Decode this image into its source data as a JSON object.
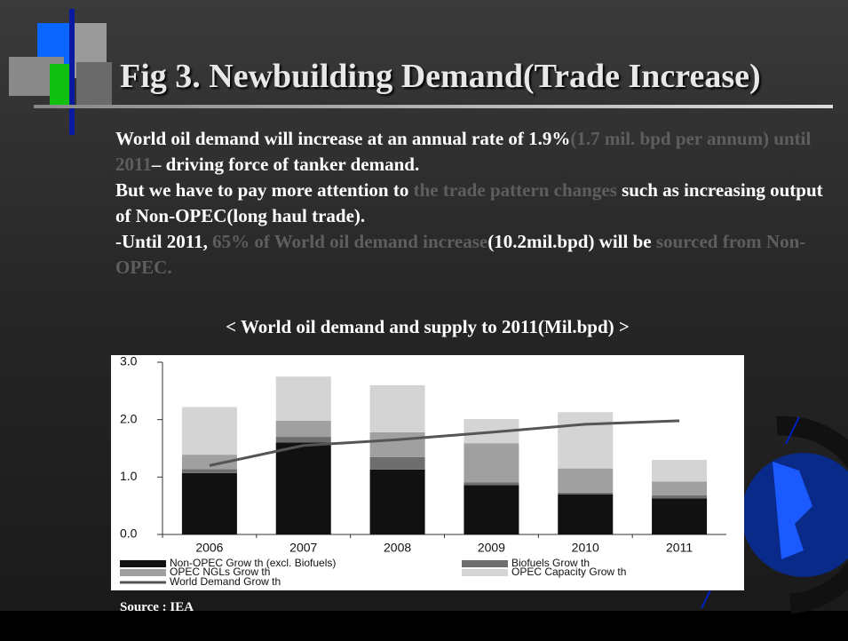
{
  "slide": {
    "title": "Fig 3. Newbuilding Demand(Trade Increase)",
    "paragraphs": [
      [
        {
          "text": "World oil demand will increase at an annual rate of 1.9%",
          "color": "#ffffff"
        },
        {
          "text": "(1.7 mil. bpd per annum) until 2011",
          "color": "#5e5e5e"
        },
        {
          "text": "– driving force of tanker demand.",
          "color": "#ffffff"
        }
      ],
      [
        {
          "text": "But we have to pay more attention to ",
          "color": "#ffffff"
        },
        {
          "text": "the trade pattern changes",
          "color": "#5e5e5e"
        },
        {
          "text": " such as increasing output of Non-OPEC(long haul trade).",
          "color": "#ffffff"
        }
      ],
      [
        {
          "text": "-Until 2011, ",
          "color": "#ffffff"
        },
        {
          "text": "65% of World oil demand increase",
          "color": "#5e5e5e"
        },
        {
          "text": "(10.2mil.bpd) will be",
          "color": "#ffffff"
        },
        {
          "text": " sourced from Non-OPEC.",
          "color": "#5e5e5e"
        }
      ]
    ],
    "chart_heading": "< World oil demand and supply to 2011(Mil.bpd) >",
    "source": "Source : IEA"
  },
  "chart_data": {
    "type": "stacked_bar_line",
    "categories": [
      "2006",
      "2007",
      "2008",
      "2009",
      "2010",
      "2011"
    ],
    "series": [
      {
        "name": "Non-OPEC Grow th (excl. Biofuels)",
        "color": "#111111",
        "values": [
          1.07,
          1.6,
          1.13,
          0.86,
          0.7,
          0.63
        ]
      },
      {
        "name": "Biofuels Grow th",
        "color": "#6e6e6e",
        "values": [
          0.07,
          0.1,
          0.22,
          0.05,
          0.03,
          0.05
        ]
      },
      {
        "name": "OPEC NGLs Grow th",
        "color": "#a0a0a0",
        "values": [
          0.25,
          0.28,
          0.43,
          0.68,
          0.42,
          0.24
        ]
      },
      {
        "name": "OPEC Capacity Grow th",
        "color": "#d4d4d4",
        "values": [
          0.83,
          0.77,
          0.82,
          0.42,
          0.98,
          0.38
        ]
      },
      {
        "name": "World Demand Grow th",
        "color": "#555555",
        "type": "line",
        "values": [
          1.2,
          1.55,
          1.65,
          1.78,
          1.92,
          1.98
        ]
      }
    ],
    "ylim": [
      0,
      3
    ],
    "yticks": [
      {
        "value": 0,
        "label": "0.0"
      },
      {
        "value": 1,
        "label": "1.0"
      },
      {
        "value": 2,
        "label": "2.0"
      },
      {
        "value": 3,
        "label": "3.0"
      }
    ]
  }
}
